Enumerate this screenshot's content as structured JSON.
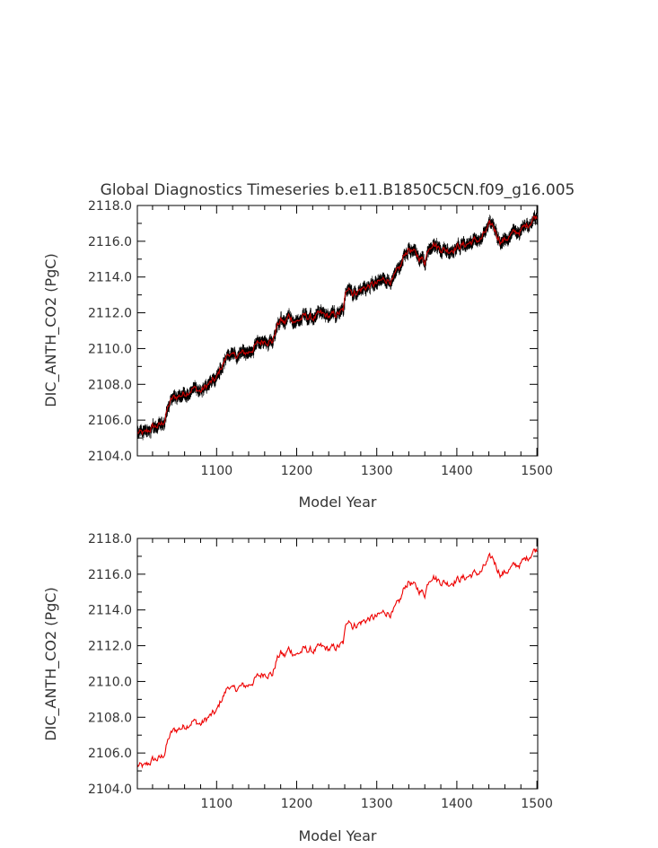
{
  "chart_data": [
    {
      "type": "line",
      "title": "Global Diagnostics Timeseries b.e11.B1850C5CN.f09_g16.005",
      "xlabel": "Model Year",
      "ylabel": "DIC_ANTH_CO2 (PgC)",
      "xlim": [
        1001,
        1501
      ],
      "ylim": [
        2104.0,
        2118.0
      ],
      "xticks": [
        1100,
        1200,
        1300,
        1400,
        1500
      ],
      "yticks": [
        "2104.0",
        "2106.0",
        "2108.0",
        "2110.0",
        "2112.0",
        "2114.0",
        "2116.0",
        "2118.0"
      ],
      "grid": false,
      "legend": "none",
      "series": [
        {
          "role": "monthly",
          "color": "#000000",
          "noise": 0.35
        },
        {
          "role": "annual",
          "color": "#cc0000"
        }
      ],
      "annual_points": {
        "x": [
          1001,
          1010,
          1020,
          1030,
          1035,
          1040,
          1045,
          1050,
          1060,
          1070,
          1080,
          1090,
          1100,
          1105,
          1110,
          1115,
          1120,
          1130,
          1140,
          1150,
          1160,
          1170,
          1175,
          1180,
          1185,
          1190,
          1200,
          1210,
          1220,
          1230,
          1240,
          1250,
          1258,
          1262,
          1265,
          1270,
          1280,
          1290,
          1300,
          1310,
          1320,
          1330,
          1335,
          1340,
          1350,
          1360,
          1365,
          1370,
          1375,
          1380,
          1390,
          1400,
          1410,
          1420,
          1430,
          1440,
          1445,
          1450,
          1455,
          1460,
          1470,
          1480,
          1490,
          1495,
          1500
        ],
        "y": [
          2105.3,
          2105.2,
          2105.6,
          2105.7,
          2106.0,
          2106.8,
          2107.2,
          2107.3,
          2107.5,
          2107.8,
          2107.6,
          2108.0,
          2108.3,
          2108.9,
          2109.3,
          2109.8,
          2109.5,
          2109.7,
          2109.8,
          2110.2,
          2110.5,
          2110.4,
          2111.2,
          2111.6,
          2111.4,
          2111.8,
          2111.5,
          2111.8,
          2111.7,
          2111.9,
          2111.8,
          2111.9,
          2112.1,
          2113.2,
          2113.6,
          2113.1,
          2113.3,
          2113.5,
          2113.6,
          2113.9,
          2113.8,
          2114.6,
          2115.3,
          2115.6,
          2115.2,
          2114.9,
          2115.7,
          2116.0,
          2115.7,
          2115.6,
          2115.5,
          2115.7,
          2115.8,
          2116.0,
          2116.1,
          2116.8,
          2116.9,
          2116.4,
          2116.0,
          2116.1,
          2116.4,
          2116.6,
          2117.0,
          2117.3,
          2117.4
        ]
      }
    },
    {
      "type": "line",
      "title": "",
      "xlabel": "Model Year",
      "ylabel": "DIC_ANTH_CO2 (PgC)",
      "xlim": [
        1001,
        1501
      ],
      "ylim": [
        2104.0,
        2118.0
      ],
      "xticks": [
        1100,
        1200,
        1300,
        1400,
        1500
      ],
      "yticks": [
        "2104.0",
        "2106.0",
        "2108.0",
        "2110.0",
        "2112.0",
        "2114.0",
        "2116.0",
        "2118.0"
      ],
      "grid": false,
      "legend": "none",
      "series": [
        {
          "role": "annual",
          "color": "#ee0000"
        }
      ]
    }
  ]
}
